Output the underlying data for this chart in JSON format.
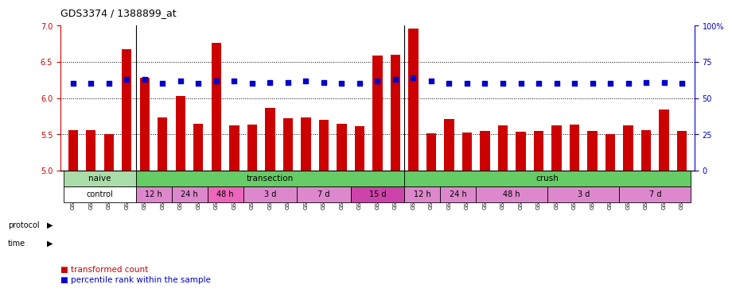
{
  "title": "GDS3374 / 1388899_at",
  "samples": [
    "GSM250998",
    "GSM250999",
    "GSM251000",
    "GSM251001",
    "GSM251002",
    "GSM251003",
    "GSM251004",
    "GSM251005",
    "GSM251006",
    "GSM251007",
    "GSM251008",
    "GSM251009",
    "GSM251010",
    "GSM251011",
    "GSM251012",
    "GSM251013",
    "GSM251014",
    "GSM251015",
    "GSM251016",
    "GSM251017",
    "GSM251018",
    "GSM251019",
    "GSM251020",
    "GSM251021",
    "GSM251022",
    "GSM251023",
    "GSM251024",
    "GSM251025",
    "GSM251026",
    "GSM251027",
    "GSM251028",
    "GSM251029",
    "GSM251030",
    "GSM251031",
    "GSM251032"
  ],
  "bar_values": [
    5.56,
    5.56,
    5.5,
    6.68,
    6.28,
    5.73,
    6.03,
    5.64,
    6.76,
    5.62,
    5.63,
    5.86,
    5.72,
    5.73,
    5.7,
    5.64,
    5.61,
    6.59,
    6.6,
    6.96,
    5.51,
    5.71,
    5.52,
    5.55,
    5.62,
    5.54,
    5.55,
    5.62,
    5.63,
    5.55,
    5.5,
    5.62,
    5.56,
    5.84,
    5.55
  ],
  "percentile_values": [
    60,
    60,
    60,
    63,
    63,
    60,
    62,
    60,
    62,
    62,
    60,
    61,
    61,
    62,
    61,
    60,
    60,
    62,
    63,
    64,
    62,
    60,
    60,
    60,
    60,
    60,
    60,
    60,
    60,
    60,
    60,
    60,
    61,
    61,
    60
  ],
  "bar_color": "#cc0000",
  "percentile_color": "#0000cc",
  "ylim_left": [
    5.0,
    7.0
  ],
  "ylim_right": [
    0,
    100
  ],
  "yticks_left": [
    5.0,
    5.5,
    6.0,
    6.5,
    7.0
  ],
  "yticks_right": [
    0,
    25,
    50,
    75,
    100
  ],
  "proto_groups": [
    {
      "label": "naive",
      "start": 0,
      "end": 4,
      "color": "#aaddaa"
    },
    {
      "label": "transection",
      "start": 4,
      "end": 19,
      "color": "#66cc66"
    },
    {
      "label": "crush",
      "start": 19,
      "end": 35,
      "color": "#66cc66"
    }
  ],
  "time_groups": [
    {
      "label": "control",
      "start": 0,
      "end": 4,
      "color": "#ffffff"
    },
    {
      "label": "12 h",
      "start": 4,
      "end": 6,
      "color": "#dd88cc"
    },
    {
      "label": "24 h",
      "start": 6,
      "end": 8,
      "color": "#dd88cc"
    },
    {
      "label": "48 h",
      "start": 8,
      "end": 10,
      "color": "#ee66bb"
    },
    {
      "label": "3 d",
      "start": 10,
      "end": 13,
      "color": "#dd88cc"
    },
    {
      "label": "7 d",
      "start": 13,
      "end": 16,
      "color": "#dd88cc"
    },
    {
      "label": "15 d",
      "start": 16,
      "end": 19,
      "color": "#cc44aa"
    },
    {
      "label": "12 h",
      "start": 19,
      "end": 21,
      "color": "#dd88cc"
    },
    {
      "label": "24 h",
      "start": 21,
      "end": 23,
      "color": "#dd88cc"
    },
    {
      "label": "48 h",
      "start": 23,
      "end": 27,
      "color": "#dd88cc"
    },
    {
      "label": "3 d",
      "start": 27,
      "end": 31,
      "color": "#dd88cc"
    },
    {
      "label": "7 d",
      "start": 31,
      "end": 35,
      "color": "#dd88cc"
    }
  ]
}
